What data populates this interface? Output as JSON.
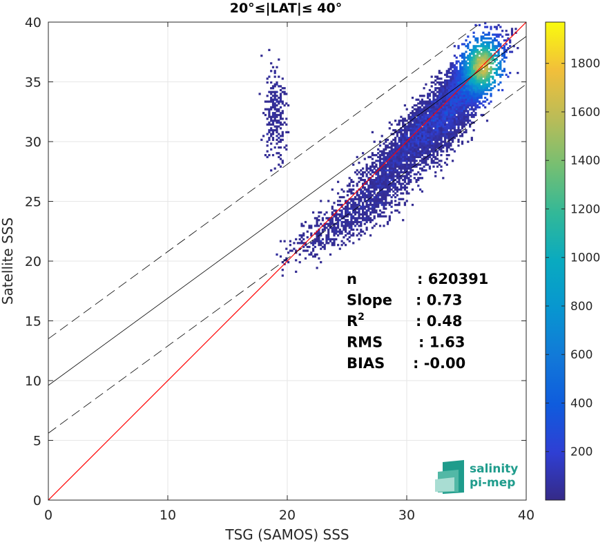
{
  "chart_data": {
    "type": "heatmap",
    "title": "20°≤|LAT|≤ 40°",
    "xlabel": "TSG (SAMOS) SSS",
    "ylabel": "Satellite SSS",
    "xlim": [
      0,
      40
    ],
    "ylim": [
      0,
      40
    ],
    "xticks": [
      0,
      10,
      20,
      30,
      40
    ],
    "yticks": [
      0,
      5,
      10,
      15,
      20,
      25,
      30,
      35,
      40
    ],
    "grid": true,
    "colorbar": {
      "range": [
        0,
        1970
      ],
      "ticks": [
        200,
        400,
        600,
        800,
        1000,
        1200,
        1400,
        1600,
        1800
      ],
      "colormap": "parula"
    },
    "lines": [
      {
        "role": "one-to-one",
        "color": "#ff0000",
        "style": "solid",
        "x": [
          0,
          40
        ],
        "y": [
          0,
          40
        ]
      },
      {
        "role": "regression",
        "color": "#000000",
        "style": "solid",
        "x": [
          0,
          40
        ],
        "y": [
          9.6,
          38.8
        ]
      },
      {
        "role": "regression-plus",
        "color": "#000000",
        "style": "dashed",
        "x": [
          0,
          40
        ],
        "y": [
          13.5,
          42.7
        ]
      },
      {
        "role": "regression-minus",
        "color": "#000000",
        "style": "dashed",
        "x": [
          0,
          40
        ],
        "y": [
          5.6,
          34.8
        ]
      }
    ],
    "stats": [
      {
        "label": "n",
        "value": ": 620391"
      },
      {
        "label": "Slope",
        "value": ": 0.73"
      },
      {
        "label": "R",
        "sup": "2",
        "value": ": 0.48"
      },
      {
        "label": "RMS",
        "value": ": 1.63"
      },
      {
        "label": "BIAS",
        "value": ": -0.00"
      }
    ],
    "density_core": {
      "x": 36.3,
      "y": 36.3,
      "peak_count": 1970
    }
  },
  "logo": {
    "line1": "salinity",
    "line2": "pi-mep",
    "color": "#1f9c8c"
  }
}
